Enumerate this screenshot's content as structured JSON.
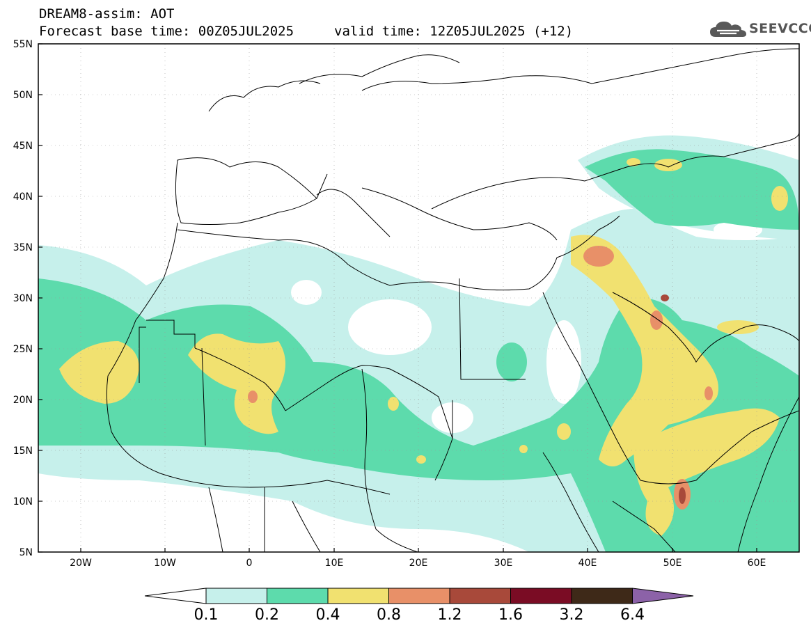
{
  "header": {
    "line1": "DREAM8-assim: AOT",
    "line2": "Forecast base time: 00Z05JUL2025",
    "valid": "valid time: 12Z05JUL2025 (+12)",
    "logo_text": "SEEVCCC",
    "logo_icon": "cloud-icon"
  },
  "map": {
    "lat_labels": [
      "55N",
      "50N",
      "45N",
      "40N",
      "35N",
      "30N",
      "25N",
      "20N",
      "15N",
      "10N",
      "5N"
    ],
    "lon_labels": [
      "20W",
      "10W",
      "0",
      "10E",
      "20E",
      "30E",
      "40E",
      "50E",
      "60E"
    ],
    "extent": {
      "lon_min": -25,
      "lon_max": 65,
      "lat_min": 5,
      "lat_max": 55
    }
  },
  "colorbar": {
    "labels": [
      "0.1",
      "0.2",
      "0.4",
      "0.8",
      "1.2",
      "1.6",
      "3.2",
      "6.4"
    ],
    "colors": [
      "#ffffff",
      "#c6f0eb",
      "#5ddbac",
      "#f1e170",
      "#e89068",
      "#a8493a",
      "#7a0c24",
      "#3e2918",
      "#8c62a8"
    ]
  }
}
